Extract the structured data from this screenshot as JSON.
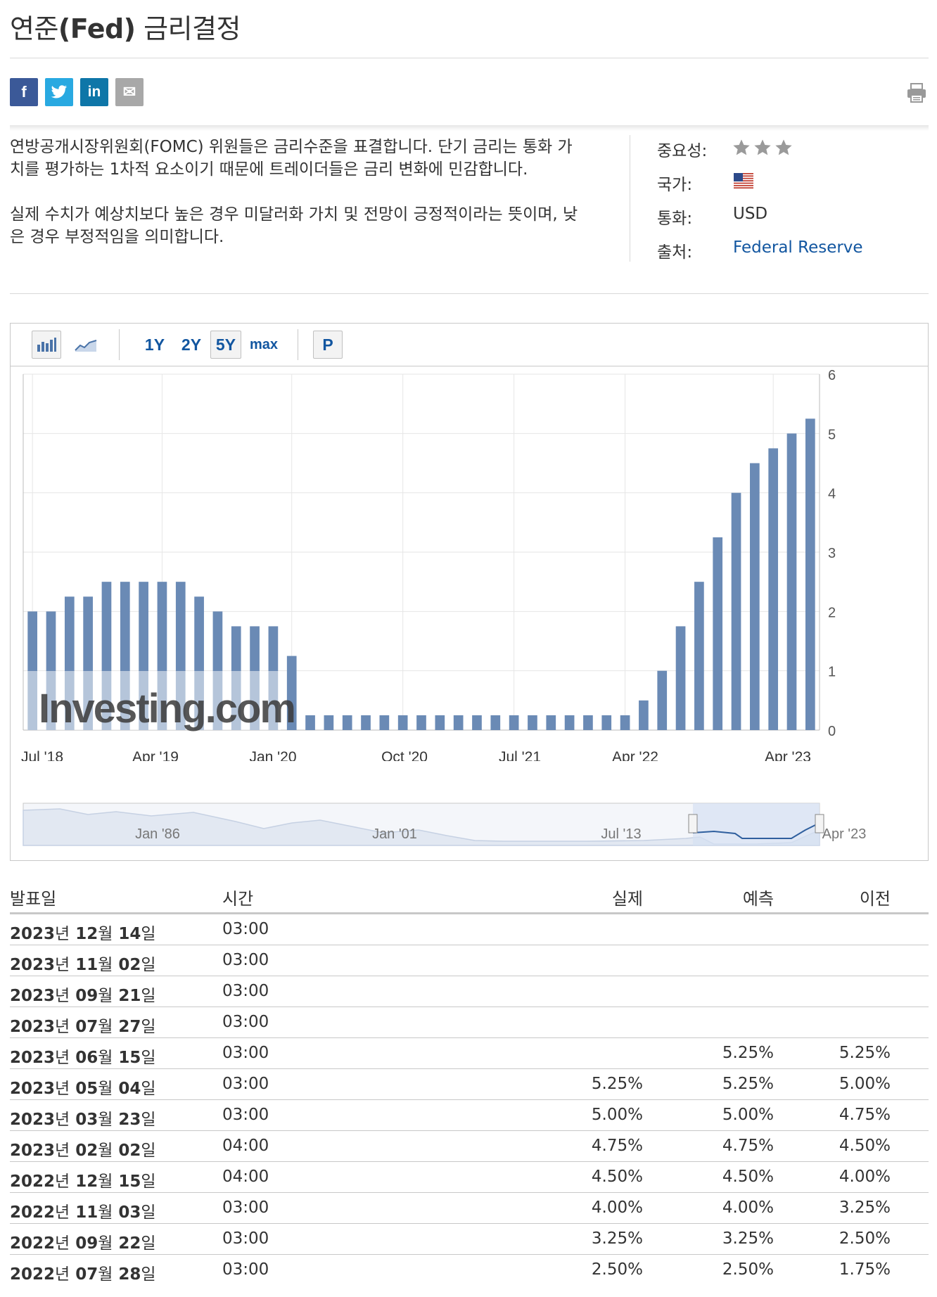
{
  "title": {
    "prefix": "연준",
    "bold": "(Fed)",
    "suffix": " 금리결정"
  },
  "share": {
    "facebook": "f",
    "twitter": "t",
    "linkedin": "in",
    "email": "✉"
  },
  "description": [
    "연방공개시장위원회(FOMC) 위원들은 금리수준을 표결합니다. 단기 금리는 통화 가치를 평가하는 1차적 요소이기 때문에 트레이더들은 금리 변화에 민감합니다.",
    "실제 수치가 예상치보다 높은 경우 미달러화 가치 및 전망이 긍정적이라는 뜻이며, 낮은 경우 부정적임을 의미합니다."
  ],
  "meta": {
    "importance_label": "중요성:",
    "importance_stars": 3,
    "country_label": "국가:",
    "country_icon": "us-flag-icon",
    "currency_label": "통화:",
    "currency": "USD",
    "source_label": "출처:",
    "source": "Federal Reserve"
  },
  "toolbar": {
    "ranges": [
      "1Y",
      "2Y",
      "5Y",
      "max"
    ],
    "active_range": "5Y",
    "p_label": "P"
  },
  "chart_data": {
    "type": "bar",
    "watermark": "Investing.com",
    "x_tick_labels": [
      "Jul '18",
      "Apr '19",
      "Jan '20",
      "Oct '20",
      "Jul '21",
      "Apr '22",
      "Apr '23"
    ],
    "y_ticks": [
      0,
      1,
      2,
      3,
      4,
      5,
      6
    ],
    "ylim": [
      0,
      6
    ],
    "y_axis_side": "right",
    "bar_color": "#6a8ab5",
    "values": [
      2.0,
      2.0,
      2.25,
      2.25,
      2.5,
      2.5,
      2.5,
      2.5,
      2.5,
      2.25,
      2.0,
      1.75,
      1.75,
      1.75,
      1.25,
      0.25,
      0.25,
      0.25,
      0.25,
      0.25,
      0.25,
      0.25,
      0.25,
      0.25,
      0.25,
      0.25,
      0.25,
      0.25,
      0.25,
      0.25,
      0.25,
      0.25,
      0.25,
      0.5,
      1.0,
      1.75,
      2.5,
      3.25,
      4.0,
      4.5,
      4.75,
      5.0,
      5.25
    ],
    "navigator_labels": [
      "Jan '86",
      "Jan '01",
      "Jul '13",
      "Apr '23"
    ]
  },
  "table": {
    "headers": {
      "date": "발표일",
      "time": "시간",
      "actual": "실제",
      "forecast": "예측",
      "previous": "이전"
    },
    "rows": [
      {
        "y": "2023",
        "m": "12",
        "d": "14",
        "time": "03:00",
        "actual": "",
        "forecast": "",
        "previous": ""
      },
      {
        "y": "2023",
        "m": "11",
        "d": "02",
        "time": "03:00",
        "actual": "",
        "forecast": "",
        "previous": ""
      },
      {
        "y": "2023",
        "m": "09",
        "d": "21",
        "time": "03:00",
        "actual": "",
        "forecast": "",
        "previous": ""
      },
      {
        "y": "2023",
        "m": "07",
        "d": "27",
        "time": "03:00",
        "actual": "",
        "forecast": "",
        "previous": ""
      },
      {
        "y": "2023",
        "m": "06",
        "d": "15",
        "time": "03:00",
        "actual": "",
        "forecast": "5.25%",
        "previous": "5.25%"
      },
      {
        "y": "2023",
        "m": "05",
        "d": "04",
        "time": "03:00",
        "actual": "5.25%",
        "forecast": "5.25%",
        "previous": "5.00%"
      },
      {
        "y": "2023",
        "m": "03",
        "d": "23",
        "time": "03:00",
        "actual": "5.00%",
        "forecast": "5.00%",
        "previous": "4.75%"
      },
      {
        "y": "2023",
        "m": "02",
        "d": "02",
        "time": "04:00",
        "actual": "4.75%",
        "forecast": "4.75%",
        "previous": "4.50%"
      },
      {
        "y": "2022",
        "m": "12",
        "d": "15",
        "time": "04:00",
        "actual": "4.50%",
        "forecast": "4.50%",
        "previous": "4.00%"
      },
      {
        "y": "2022",
        "m": "11",
        "d": "03",
        "time": "03:00",
        "actual": "4.00%",
        "forecast": "4.00%",
        "previous": "3.25%"
      },
      {
        "y": "2022",
        "m": "09",
        "d": "22",
        "time": "03:00",
        "actual": "3.25%",
        "forecast": "3.25%",
        "previous": "2.50%"
      },
      {
        "y": "2022",
        "m": "07",
        "d": "28",
        "time": "03:00",
        "actual": "2.50%",
        "forecast": "2.50%",
        "previous": "1.75%"
      }
    ],
    "units": {
      "year": "년",
      "month": "월",
      "day": "일"
    }
  }
}
